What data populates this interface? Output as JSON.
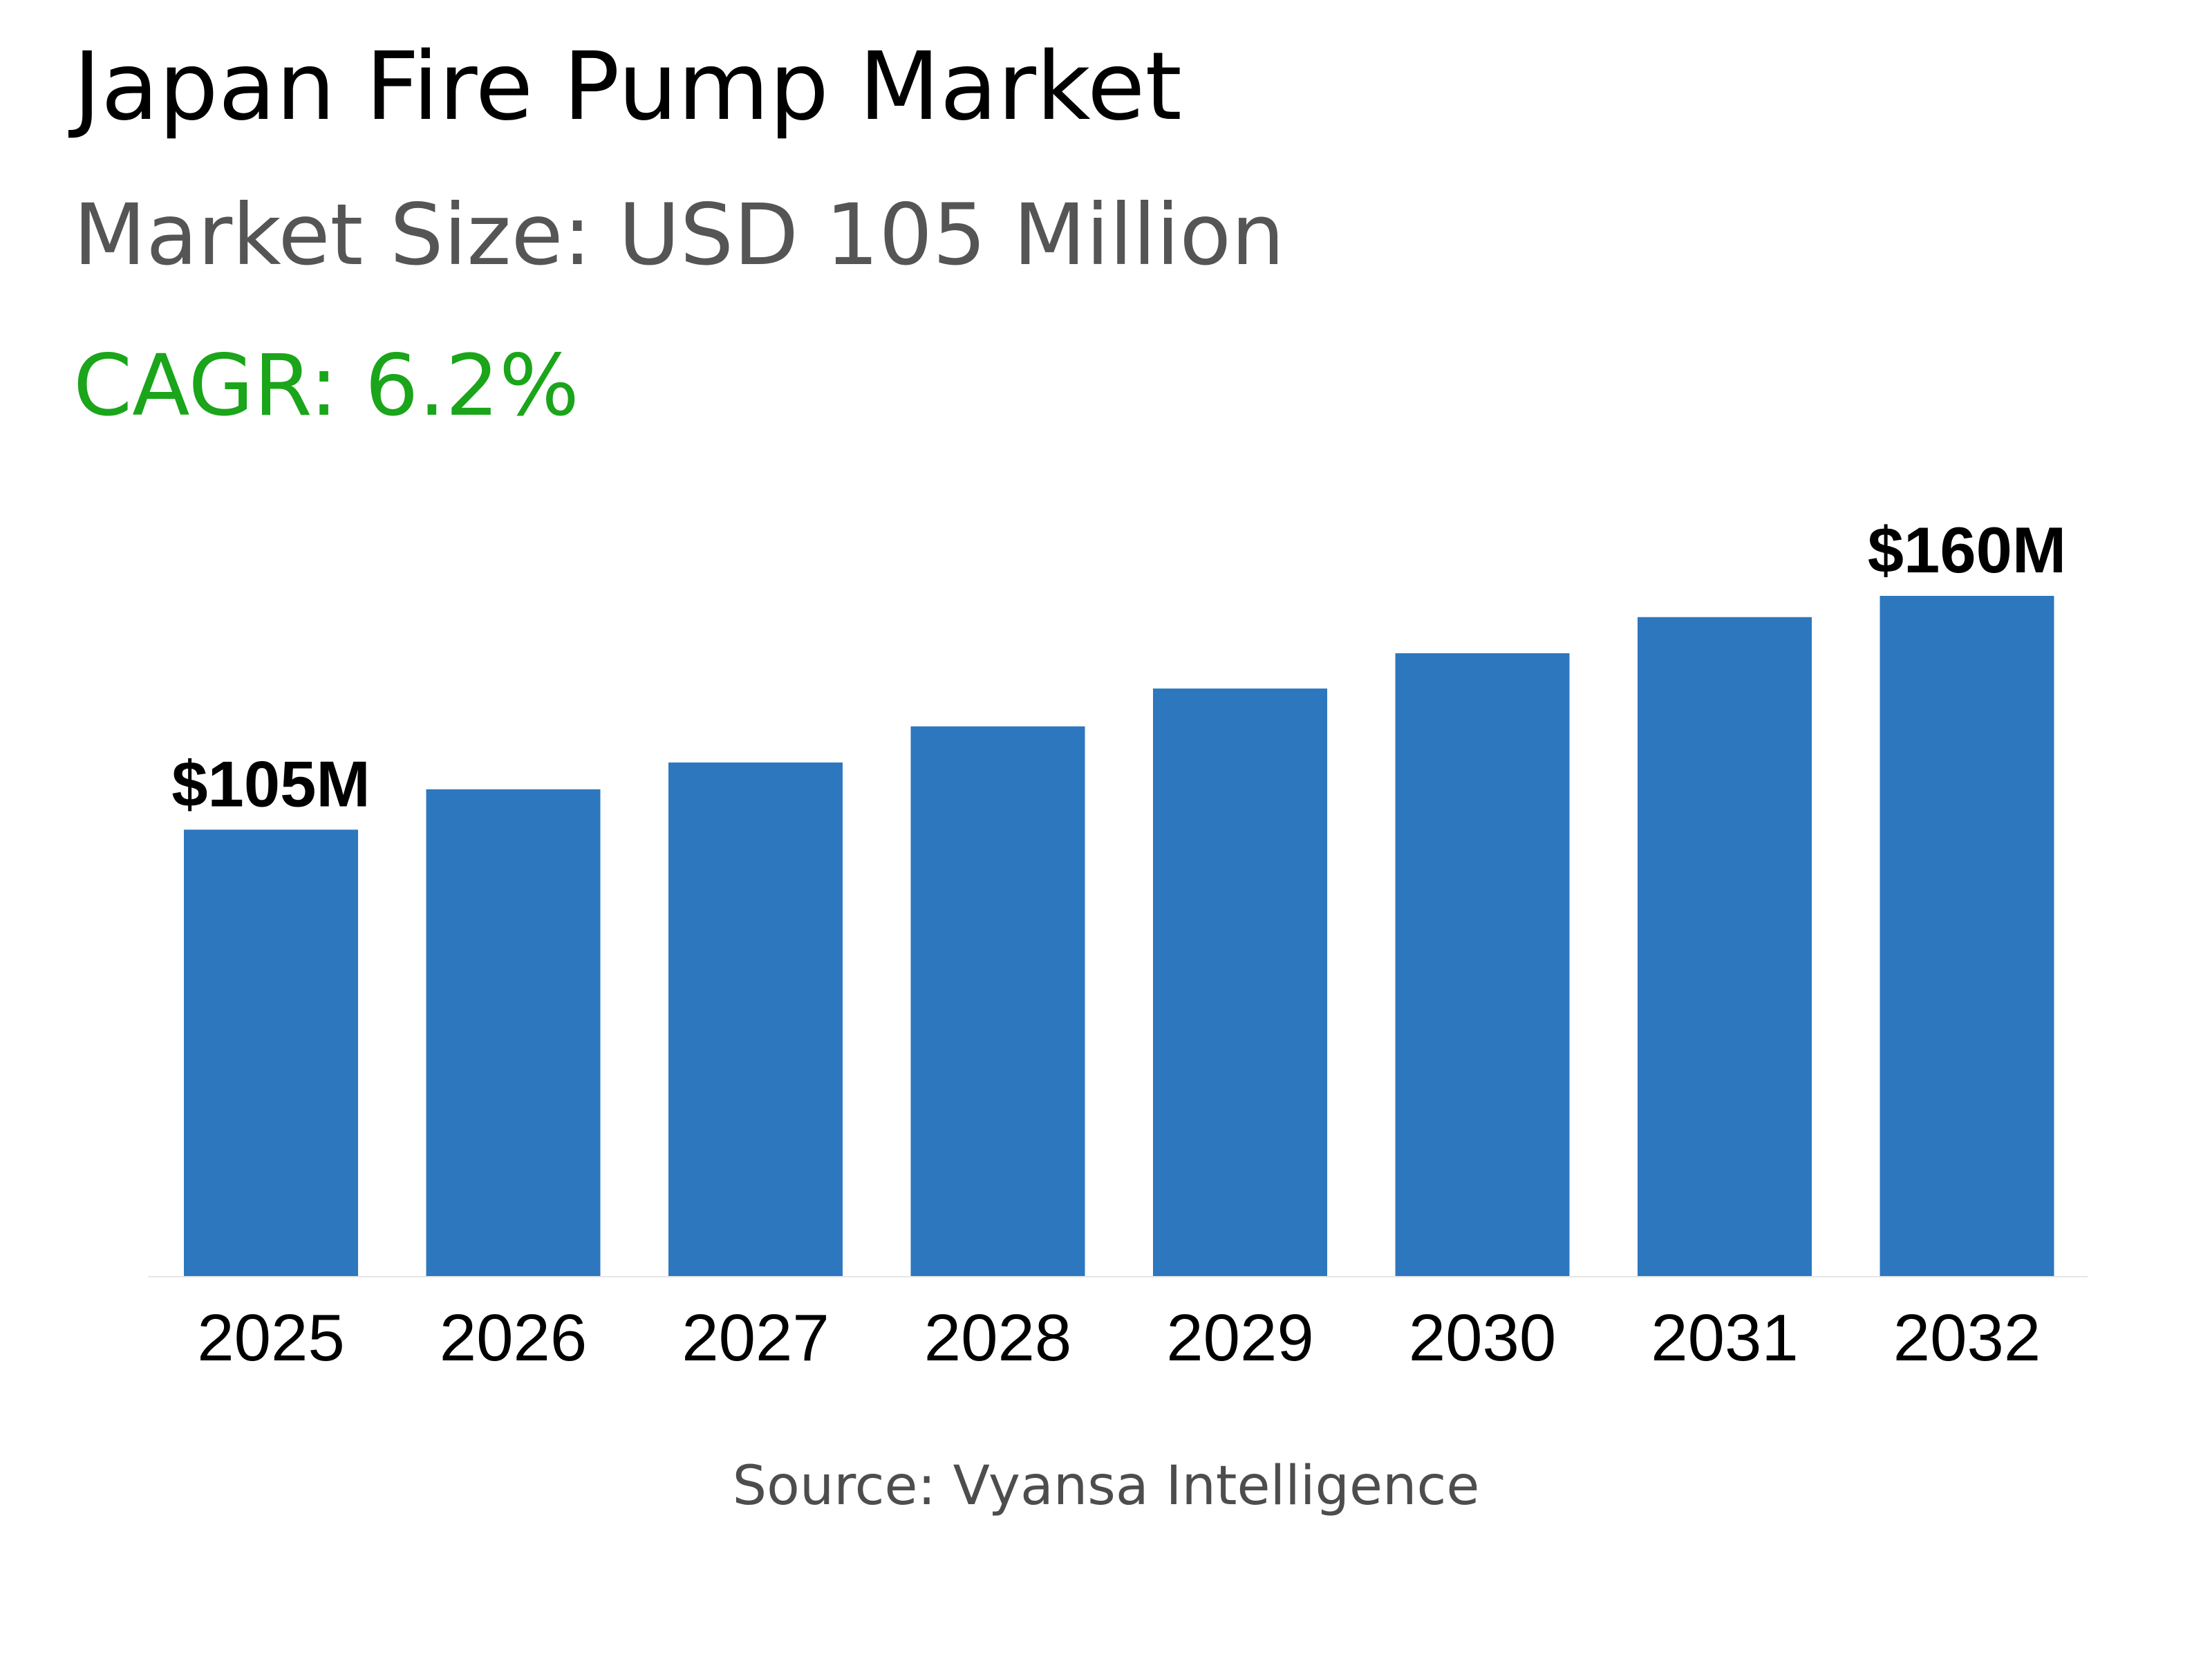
{
  "header": {
    "title": "Japan Fire Pump Market",
    "market_size": "Market Size: USD 105 Million",
    "cagr": "CAGR: 6.2%"
  },
  "source": "Source: Vyansa Intelligence",
  "colors": {
    "bar": "#2d77bf",
    "cagr": "#1aa51a",
    "subtitle": "#555555"
  },
  "chart_data": {
    "type": "bar",
    "categories": [
      "2025",
      "2026",
      "2027",
      "2028",
      "2029",
      "2030",
      "2031",
      "2032"
    ],
    "values": [
      105,
      114.5,
      120.8,
      129.3,
      138.2,
      146.5,
      155,
      160
    ],
    "data_labels": [
      {
        "category": "2025",
        "text": "$105M"
      },
      {
        "category": "2032",
        "text": "$160M"
      }
    ],
    "ylim": [
      0,
      160
    ],
    "unit": "USD Million",
    "grid": false,
    "legend": "none"
  }
}
